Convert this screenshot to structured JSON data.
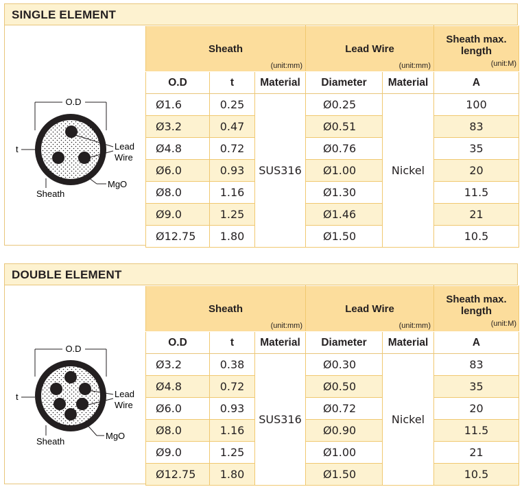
{
  "single": {
    "title": "SINGLE ELEMENT",
    "diagram": {
      "od_label": "O.D",
      "t_label": "t",
      "lead_label_1": "Lead",
      "lead_label_2": "Wire",
      "mgo_label": "MgO",
      "sheath_label": "Sheath"
    },
    "headers": {
      "sheath": "Sheath",
      "sheath_unit": "(unit:mm)",
      "lead_wire": "Lead Wire",
      "lead_wire_unit": "(unit:mm)",
      "length_1": "Sheath max.",
      "length_2": "length",
      "length_unit": "(unit:M)",
      "od": "O.D",
      "t": "t",
      "material": "Material",
      "diameter": "Diameter",
      "material2": "Material",
      "a": "A"
    },
    "sheath_material": "SUS316",
    "lead_material": "Nickel",
    "rows": [
      {
        "od": "Ø1.6",
        "t": "0.25",
        "dia": "Ø0.25",
        "a": "100"
      },
      {
        "od": "Ø3.2",
        "t": "0.47",
        "dia": "Ø0.51",
        "a": "83"
      },
      {
        "od": "Ø4.8",
        "t": "0.72",
        "dia": "Ø0.76",
        "a": "35"
      },
      {
        "od": "Ø6.0",
        "t": "0.93",
        "dia": "Ø1.00",
        "a": "20"
      },
      {
        "od": "Ø8.0",
        "t": "1.16",
        "dia": "Ø1.30",
        "a": "11.5"
      },
      {
        "od": "Ø9.0",
        "t": "1.25",
        "dia": "Ø1.46",
        "a": "21"
      },
      {
        "od": "Ø12.75",
        "t": "1.80",
        "dia": "Ø1.50",
        "a": "10.5"
      }
    ]
  },
  "double": {
    "title": "DOUBLE ELEMENT",
    "diagram": {
      "od_label": "O.D",
      "t_label": "t",
      "lead_label_1": "Lead",
      "lead_label_2": "Wire",
      "mgo_label": "MgO",
      "sheath_label": "Sheath"
    },
    "headers": {
      "sheath": "Sheath",
      "sheath_unit": "(unit:mm)",
      "lead_wire": "Lead Wire",
      "lead_wire_unit": "(unit:mm)",
      "length_1": "Sheath max.",
      "length_2": "length",
      "length_unit": "(unit:M)",
      "od": "O.D",
      "t": "t",
      "material": "Material",
      "diameter": "Diameter",
      "material2": "Material",
      "a": "A"
    },
    "sheath_material": "SUS316",
    "lead_material": "Nickel",
    "rows": [
      {
        "od": "Ø3.2",
        "t": "0.38",
        "dia": "Ø0.30",
        "a": "83"
      },
      {
        "od": "Ø4.8",
        "t": "0.72",
        "dia": "Ø0.50",
        "a": "35"
      },
      {
        "od": "Ø6.0",
        "t": "0.93",
        "dia": "Ø0.72",
        "a": "20"
      },
      {
        "od": "Ø8.0",
        "t": "1.16",
        "dia": "Ø0.90",
        "a": "11.5"
      },
      {
        "od": "Ø9.0",
        "t": "1.25",
        "dia": "Ø1.00",
        "a": "21"
      },
      {
        "od": "Ø12.75",
        "t": "1.80",
        "dia": "Ø1.50",
        "a": "10.5"
      }
    ]
  },
  "colors": {
    "header_fill": "#fcdd9c",
    "stripe_fill": "#fdf2d0",
    "border": "#e8c57a"
  }
}
